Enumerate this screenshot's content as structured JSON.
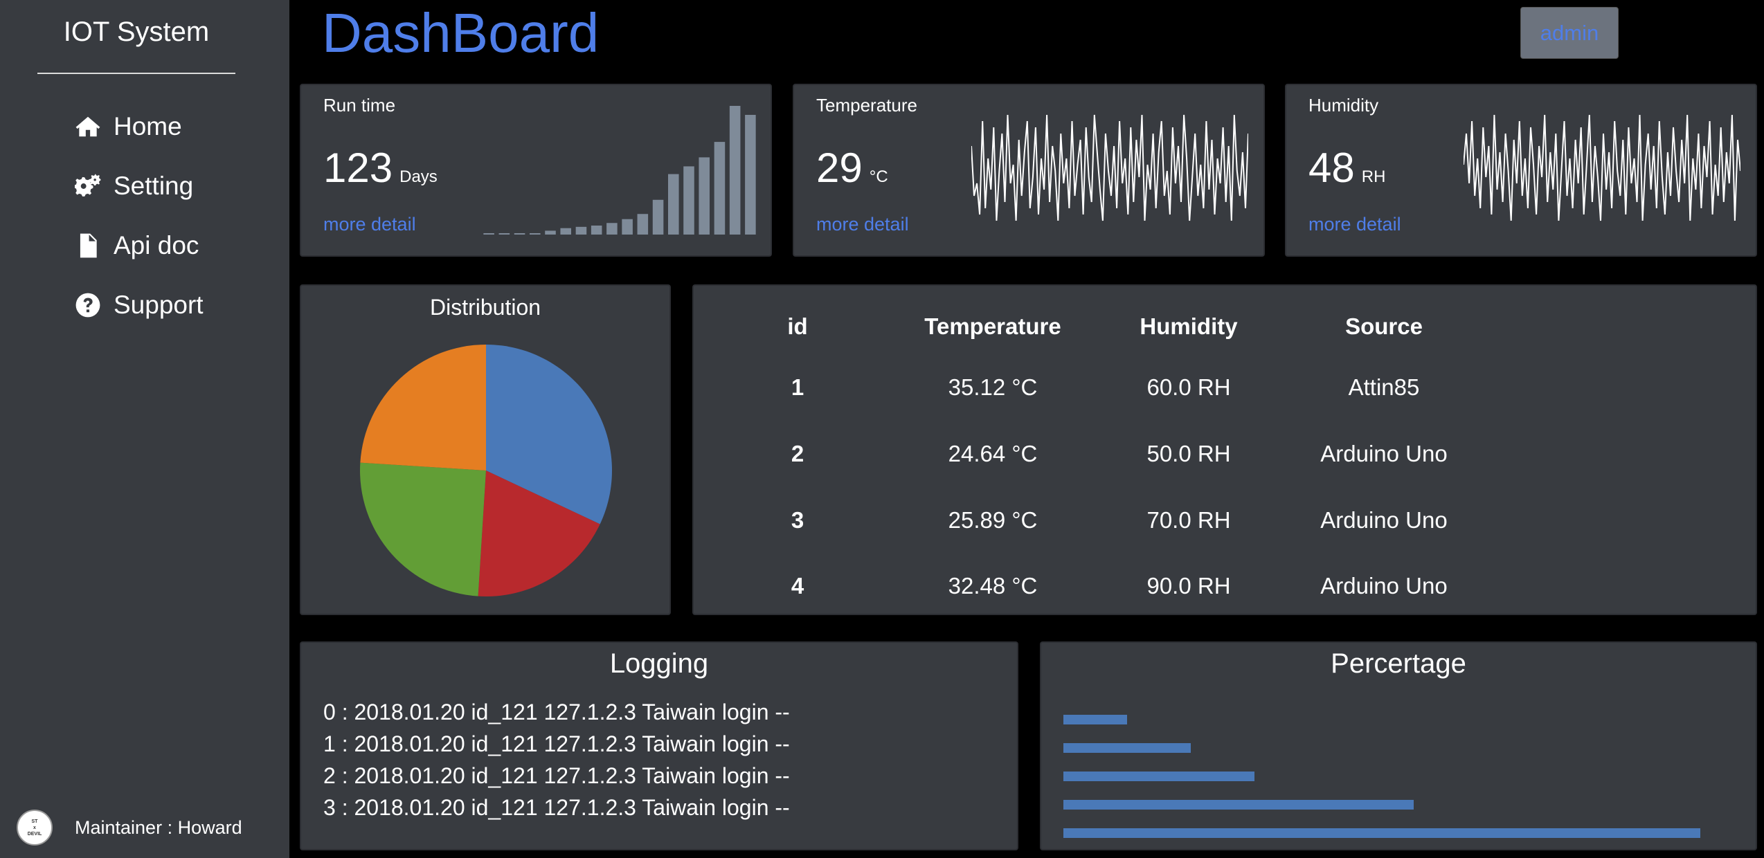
{
  "sidebar": {
    "brand": "IOT System",
    "items": [
      {
        "label": "Home",
        "icon": "home-icon"
      },
      {
        "label": "Setting",
        "icon": "gears-icon"
      },
      {
        "label": "Api doc",
        "icon": "file-icon"
      },
      {
        "label": "Support",
        "icon": "question-circle-icon"
      }
    ],
    "maintainer": "Maintainer : Howard",
    "avatar_text": [
      "ST",
      "x",
      "DEVIL"
    ]
  },
  "header": {
    "title": "DashBoard",
    "admin_label": "admin"
  },
  "colors": {
    "accent": "#4f7ee9",
    "card_bg": "#383b40",
    "bar_gray": "#7f8b99",
    "pie_blue": "#4a79b8",
    "pie_red": "#b8292d",
    "pie_green": "#629e36",
    "pie_orange": "#e57e22"
  },
  "stats": {
    "runtime": {
      "label": "Run time",
      "value": "123",
      "unit": "Days",
      "link": "more detail"
    },
    "temperature": {
      "label": "Temperature",
      "value": "29",
      "unit": "°C",
      "link": "more detail"
    },
    "humidity": {
      "label": "Humidity",
      "value": "48",
      "unit": "RH",
      "link": "more detail"
    }
  },
  "distribution": {
    "title": "Distribution"
  },
  "table": {
    "headers": [
      "id",
      "Temperature",
      "Humidity",
      "Source"
    ],
    "rows": [
      [
        "1",
        "35.12 °C",
        "60.0 RH",
        "Attin85"
      ],
      [
        "2",
        "24.64 °C",
        "50.0 RH",
        "Arduino Uno"
      ],
      [
        "3",
        "25.89 °C",
        "70.0 RH",
        "Arduino Uno"
      ],
      [
        "4",
        "32.48 °C",
        "90.0 RH",
        "Arduino Uno"
      ]
    ]
  },
  "logging": {
    "title": "Logging",
    "lines": [
      "0 : 2018.01.20 id_121 127.1.2.3 Taiwain login --",
      "1 : 2018.01.20 id_121 127.1.2.3 Taiwain login --",
      "2 : 2018.01.20 id_121 127.1.2.3 Taiwain login --",
      "3 : 2018.01.20 id_121 127.1.2.3 Taiwain login --"
    ]
  },
  "percentage": {
    "title": "Percertage"
  },
  "chart_data": [
    {
      "type": "bar",
      "name": "runtime-sparkbars",
      "values": [
        0.3,
        0.5,
        0.7,
        1,
        3,
        5,
        6,
        7,
        9,
        12,
        16,
        27,
        47,
        53,
        60,
        72,
        100,
        93
      ],
      "ylim": [
        0,
        100
      ]
    },
    {
      "type": "line",
      "name": "temperature-sparkline",
      "values": [
        70,
        30,
        40,
        15,
        90,
        20,
        60,
        35,
        85,
        10,
        50,
        80,
        25,
        95,
        40,
        55,
        10,
        75,
        30,
        65,
        90,
        20,
        45,
        85,
        15,
        60,
        35,
        95,
        25,
        70,
        50,
        10,
        80,
        40,
        60,
        20,
        90,
        30,
        55,
        75,
        15,
        85,
        45,
        25,
        95,
        65,
        35,
        10,
        80,
        50,
        30,
        70,
        20,
        90,
        40,
        60,
        15,
        85,
        25,
        75,
        45,
        95,
        10,
        55,
        35,
        80,
        20,
        65,
        90,
        30,
        50,
        15,
        85,
        40,
        70,
        25,
        95,
        60,
        10,
        45,
        80,
        30,
        55,
        20,
        90,
        35,
        75,
        15,
        60,
        40,
        85,
        25,
        70,
        10,
        95,
        50,
        30,
        65,
        20,
        80
      ],
      "ylim": [
        0,
        100
      ]
    },
    {
      "type": "line",
      "name": "humidity-sparkline",
      "values": [
        55,
        80,
        40,
        90,
        30,
        60,
        20,
        85,
        45,
        70,
        15,
        95,
        35,
        65,
        25,
        80,
        50,
        10,
        75,
        40,
        90,
        30,
        60,
        20,
        85,
        55,
        15,
        70,
        45,
        95,
        25,
        65,
        35,
        80,
        10,
        50,
        90,
        30,
        60,
        20,
        75,
        40,
        85,
        15,
        55,
        95,
        25,
        70,
        45,
        10,
        80,
        35,
        65,
        20,
        90,
        50,
        30,
        75,
        15,
        85,
        40,
        60,
        25,
        95,
        10,
        55,
        80,
        35,
        70,
        20,
        90,
        45,
        15,
        65,
        30,
        85,
        50,
        25,
        75,
        40,
        95,
        10,
        60,
        35,
        80,
        20,
        70,
        45,
        90,
        15,
        55,
        30,
        85,
        25,
        65,
        40,
        95,
        10,
        75,
        50
      ],
      "ylim": [
        0,
        100
      ]
    },
    {
      "type": "pie",
      "name": "distribution",
      "values": [
        32,
        19,
        25,
        24
      ],
      "colors": [
        "#4a79b8",
        "#b8292d",
        "#629e36",
        "#e57e22"
      ]
    },
    {
      "type": "bar",
      "name": "percentage",
      "orientation": "horizontal",
      "values": [
        10,
        20,
        30,
        55,
        100
      ],
      "xlim": [
        0,
        100
      ],
      "color": "#4a79b8"
    }
  ]
}
